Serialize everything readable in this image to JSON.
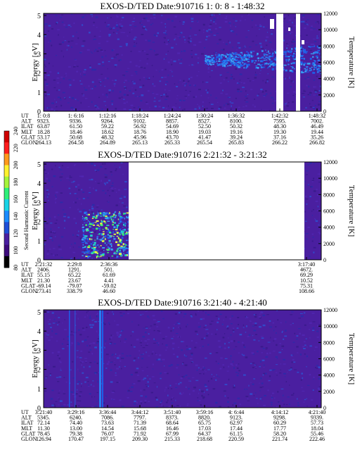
{
  "colors": {
    "background": "#4a1fa0",
    "noise": [
      "#3a1a8c",
      "#5026b0",
      "#2d2aa8",
      "#3348c8"
    ],
    "mid": [
      "#1e5ee8",
      "#2a7cf0",
      "#39a4f4"
    ],
    "high": [
      "#20d8c8",
      "#3cf06e",
      "#e8ff40"
    ],
    "colorbar": [
      "#000000",
      "#3d0b7c",
      "#4a1fa0",
      "#1e4fd8",
      "#1a8cff",
      "#19d4e6",
      "#2ef07a",
      "#a6f53a",
      "#fff22e",
      "#ff9a1c",
      "#ff1e1e",
      "#d00000"
    ]
  },
  "colorbar": {
    "label": "Second Harmonic Current",
    "ticks": [
      "80",
      "100",
      "120",
      "140",
      "160",
      "180",
      "200",
      "220",
      "240"
    ]
  },
  "chart_data": [
    {
      "type": "heatmap",
      "title": "EXOS-D/TED   Date:910716   1: 0: 8 - 1:48:32",
      "ylabel": "Energy [eV]",
      "y2label": "Temperature [K]",
      "ylim": [
        0,
        5
      ],
      "y2lim": [
        0,
        12000
      ],
      "yticks": [
        "0",
        "1",
        "2",
        "3",
        "4",
        "5"
      ],
      "y2ticks": [
        "0",
        "2000",
        "4000",
        "6000",
        "8000",
        "10000",
        "12000"
      ],
      "table_rows": [
        {
          "label": "UT",
          "values": [
            "1: 0:8",
            "1: 6:16",
            "1:12:16",
            "1:18:24",
            "1:24:24",
            "1:30:24",
            "1:36:32",
            "1:42:32",
            "1:48:32"
          ]
        },
        {
          "label": "ALT",
          "values": [
            "9323.",
            "9336.",
            "9264.",
            "9102.",
            "8857.",
            "8527.",
            "8100.",
            "7595.",
            "7002."
          ]
        },
        {
          "label": "ILAT",
          "values": [
            "63.87",
            "61.50",
            "59.22",
            "56.92",
            "54.69",
            "52.50",
            "50.32",
            "48.30",
            "46.49"
          ]
        },
        {
          "label": "MLT",
          "values": [
            "18.28",
            "18.46",
            "18.62",
            "18.76",
            "18.90",
            "19.03",
            "19.16",
            "19.30",
            "19.44"
          ]
        },
        {
          "label": "GLAT",
          "values": [
            "53.17",
            "50.68",
            "48.32",
            "45.96",
            "43.70",
            "41.47",
            "39.24",
            "37.16",
            "35.26"
          ]
        },
        {
          "label": "GLON",
          "values": [
            "264.13",
            "264.58",
            "264.89",
            "265.13",
            "265.33",
            "265.54",
            "265.83",
            "266.22",
            "266.82"
          ]
        }
      ]
    },
    {
      "type": "heatmap",
      "title": "EXOS-D/TED   Date:910716   2:21:32 - 3:21:32",
      "ylabel": "Energy [eV]",
      "y2label": "Temperature [K]",
      "ylim": [
        0,
        5
      ],
      "y2lim": [
        0,
        12000
      ],
      "yticks": [
        "0",
        "1",
        "2",
        "3",
        "4",
        "5"
      ],
      "y2ticks": [
        "0",
        "2000",
        "4000",
        "6000",
        "8000",
        "10000",
        "12000"
      ],
      "table_rows": [
        {
          "label": "UT",
          "values": [
            "2:21:32",
            "2:29:8",
            "2:36:36",
            "3:17:40"
          ]
        },
        {
          "label": "ALT",
          "values": [
            "2406.",
            "1291.",
            "501.",
            "4672."
          ]
        },
        {
          "label": "ILAT",
          "values": [
            "55.15",
            "65.22",
            "61.69",
            "69.29"
          ]
        },
        {
          "label": "MLT",
          "values": [
            "21.30",
            "23.67",
            "4.41",
            "10.52"
          ]
        },
        {
          "label": "GLAT",
          "values": [
            "-69.14",
            "-79.07",
            "-59.02",
            "75.31"
          ]
        },
        {
          "label": "GLON",
          "values": [
            "273.41",
            "338.79",
            "46.60",
            "108.66"
          ]
        }
      ]
    },
    {
      "type": "heatmap",
      "title": "EXOS-D/TED   Date:910716   3:21:40 - 4:21:40",
      "ylabel": "Energy [eV]",
      "y2label": "Temperature [K]",
      "ylim": [
        0,
        5
      ],
      "y2lim": [
        0,
        12000
      ],
      "yticks": [
        "0",
        "1",
        "2",
        "3",
        "4",
        "5"
      ],
      "y2ticks": [
        "0",
        "2000",
        "4000",
        "6000",
        "8000",
        "10000",
        "12000"
      ],
      "table_rows": [
        {
          "label": "UT",
          "values": [
            "3:21:40",
            "3:29:16",
            "3:36:44",
            "3:44:12",
            "3:51:40",
            "3:59:16",
            "4: 6:44",
            "4:14:12",
            "4:21:40"
          ]
        },
        {
          "label": "ALT",
          "values": [
            "5345.",
            "6240.",
            "7086.",
            "7797.",
            "8373.",
            "8820.",
            "9123.",
            "9298.",
            "9339."
          ]
        },
        {
          "label": "ILAT",
          "values": [
            "72.14",
            "74.40",
            "73.63",
            "71.39",
            "68.64",
            "65.75",
            "62.97",
            "60.29",
            "57.73"
          ]
        },
        {
          "label": "MLT",
          "values": [
            "11.30",
            "13.00",
            "14.54",
            "15.68",
            "16.46",
            "17.03",
            "17.44",
            "17.77",
            "18.04"
          ]
        },
        {
          "label": "GLAT",
          "values": [
            "78.45",
            "79.38",
            "76.07",
            "71.92",
            "67.99",
            "64.37",
            "61.15",
            "58.20",
            "55.46"
          ]
        },
        {
          "label": "GLON",
          "values": [
            "126.94",
            "170.47",
            "197.15",
            "209.30",
            "215.33",
            "218.68",
            "220.59",
            "221.74",
            "222.46"
          ]
        }
      ]
    }
  ]
}
